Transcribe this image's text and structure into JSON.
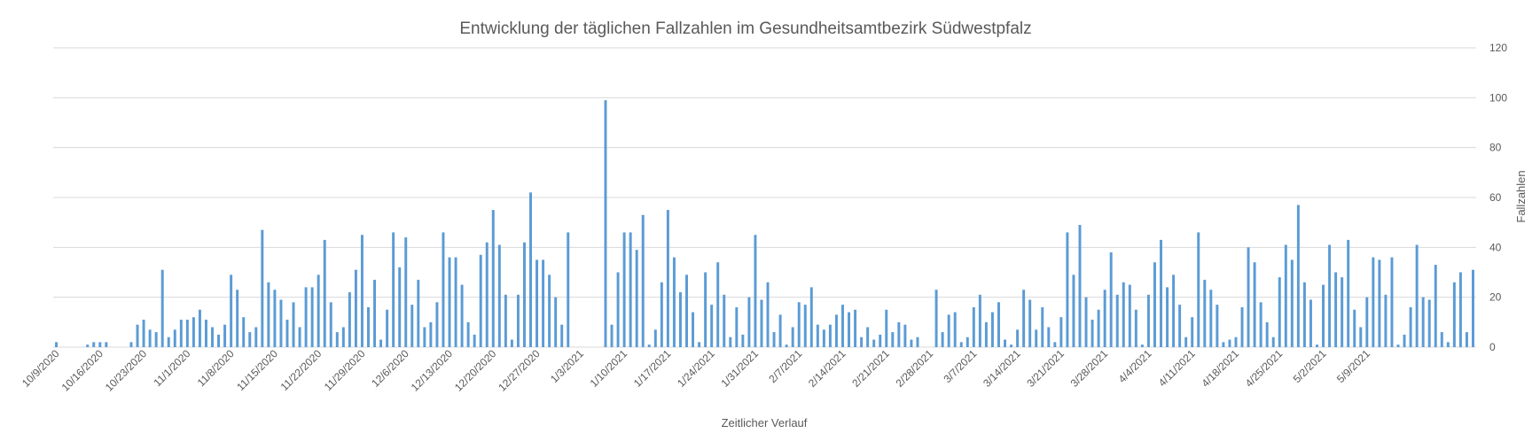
{
  "chart_data": {
    "type": "bar",
    "title": "Entwicklung der täglichen Fallzahlen im Gesundheitsamtbezirk Südwestpfalz",
    "xlabel": "Zeitlicher Verlauf",
    "ylabel": "Fallzahlen",
    "ylim": [
      0,
      120
    ],
    "yticks": [
      0,
      20,
      40,
      60,
      80,
      100,
      120
    ],
    "y_axis_side": "right",
    "grid": true,
    "legend": "none",
    "bar_color": "#5b9bd5",
    "start_date": "10/9/2020",
    "x_tick_labels": [
      "10/9/2020",
      "10/16/2020",
      "10/23/2020",
      "11/1/2020",
      "11/8/2020",
      "11/15/2020",
      "11/22/2020",
      "11/29/2020",
      "12/6/2020",
      "12/13/2020",
      "12/20/2020",
      "12/27/2020",
      "1/3/2021",
      "1/10/2021",
      "1/17/2021",
      "1/24/2021",
      "1/31/2021",
      "2/7/2021",
      "2/14/2021",
      "2/21/2021",
      "2/28/2021",
      "3/7/2021",
      "3/14/2021",
      "3/21/2021",
      "3/28/2021",
      "4/4/2021",
      "4/11/2021",
      "4/18/2021",
      "4/25/2021",
      "5/2/2021",
      "5/9/2021"
    ],
    "values": [
      2,
      0,
      0,
      0,
      0,
      1,
      2,
      2,
      2,
      0,
      0,
      0,
      2,
      9,
      11,
      7,
      6,
      31,
      4,
      7,
      11,
      11,
      12,
      15,
      11,
      8,
      5,
      9,
      29,
      23,
      12,
      6,
      8,
      47,
      26,
      23,
      19,
      11,
      18,
      8,
      24,
      24,
      29,
      43,
      18,
      6,
      8,
      22,
      31,
      45,
      16,
      27,
      3,
      15,
      46,
      32,
      44,
      17,
      27,
      8,
      10,
      18,
      46,
      36,
      36,
      25,
      10,
      5,
      37,
      42,
      55,
      41,
      21,
      3,
      21,
      42,
      62,
      35,
      35,
      29,
      20,
      9,
      46,
      0,
      0,
      0,
      0,
      0,
      99,
      9,
      30,
      46,
      46,
      39,
      53,
      1,
      7,
      26,
      55,
      36,
      22,
      29,
      14,
      2,
      30,
      17,
      34,
      21,
      4,
      16,
      5,
      20,
      45,
      19,
      26,
      6,
      13,
      1,
      8,
      18,
      17,
      24,
      9,
      7,
      9,
      13,
      17,
      14,
      15,
      4,
      8,
      3,
      5,
      15,
      6,
      10,
      9,
      3,
      4,
      0,
      0,
      23,
      6,
      13,
      14,
      2,
      4,
      16,
      21,
      10,
      14,
      18,
      3,
      1,
      7,
      23,
      19,
      7,
      16,
      8,
      2,
      12,
      46,
      29,
      49,
      20,
      11,
      15,
      23,
      38,
      21,
      26,
      25,
      15,
      1,
      21,
      34,
      43,
      24,
      29,
      17,
      4,
      12,
      46,
      27,
      23,
      17,
      2,
      3,
      4,
      16,
      40,
      34,
      18,
      10,
      4,
      28,
      41,
      35,
      57,
      26,
      19,
      1,
      25,
      41,
      30,
      28,
      43,
      15,
      8,
      20,
      36,
      35,
      21,
      36,
      1,
      5,
      16,
      41,
      20,
      19,
      33,
      6,
      2,
      26,
      30,
      6,
      31
    ]
  }
}
